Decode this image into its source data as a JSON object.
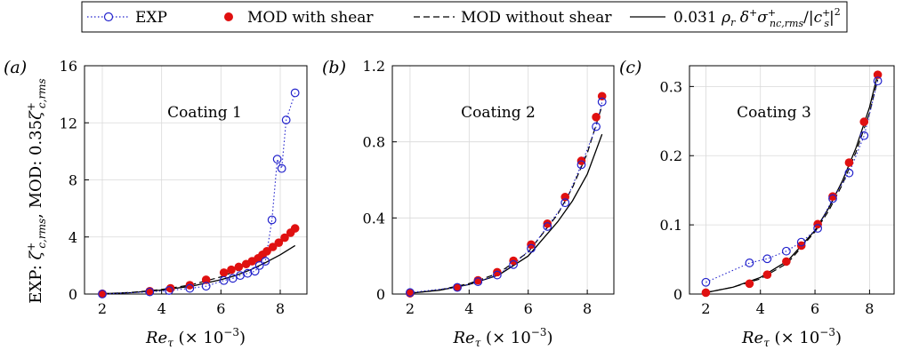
{
  "legend": {
    "items": [
      {
        "label": "EXP",
        "style": "open-circle-dotted",
        "color": "#2222cc"
      },
      {
        "label": "MOD with shear",
        "style": "filled-circle",
        "color": "#e01010"
      },
      {
        "label": "MOD without shear",
        "style": "dashed",
        "color": "#000000"
      },
      {
        "label": "0.031 ρr δ+σ+nc,rms/|c+s|2",
        "style": "solid",
        "color": "#000000"
      }
    ]
  },
  "ylabel": "EXP: ζ+c,rms, MOD: 0.35ζ+c,rms",
  "chart_data": [
    {
      "type": "line",
      "panel_label": "(a)",
      "annotation": "Coating 1",
      "xlabel": "Reτ (× 10−3)",
      "xlim": [
        1.4,
        8.9
      ],
      "ylim": [
        0,
        16
      ],
      "xticks": [
        2,
        4,
        6,
        8
      ],
      "yticks": [
        0,
        4,
        8,
        12,
        16
      ],
      "grid": true,
      "series": [
        {
          "name": "EXP",
          "x": [
            2.0,
            3.6,
            4.25,
            4.95,
            5.5,
            6.1,
            6.4,
            6.65,
            6.9,
            7.15,
            7.3,
            7.5,
            7.72,
            7.9,
            8.05,
            8.2,
            8.5
          ],
          "y": [
            0.0,
            0.15,
            0.25,
            0.4,
            0.55,
            0.95,
            1.1,
            1.3,
            1.45,
            1.6,
            2.0,
            2.3,
            5.2,
            9.45,
            8.8,
            12.2,
            14.1
          ]
        },
        {
          "name": "MOD with shear",
          "x": [
            2.0,
            3.6,
            4.3,
            4.95,
            5.5,
            6.1,
            6.35,
            6.6,
            6.85,
            7.05,
            7.25,
            7.4,
            7.55,
            7.75,
            7.95,
            8.15,
            8.35,
            8.5
          ],
          "y": [
            0.02,
            0.2,
            0.4,
            0.62,
            1.0,
            1.5,
            1.7,
            1.9,
            2.1,
            2.3,
            2.5,
            2.75,
            3.0,
            3.3,
            3.6,
            3.95,
            4.3,
            4.6
          ]
        },
        {
          "name": "MOD without shear",
          "x": [
            2.0,
            3.0,
            4.0,
            5.0,
            6.0,
            6.5,
            7.0,
            7.5,
            8.0,
            8.5
          ],
          "y": [
            0.02,
            0.12,
            0.32,
            0.65,
            1.2,
            1.6,
            2.1,
            2.75,
            3.55,
            4.55
          ]
        },
        {
          "name": "0.031 ρr δ+σ+nc,rms/|c+s|2",
          "x": [
            2.0,
            3.0,
            4.0,
            5.0,
            6.0,
            6.5,
            7.0,
            7.5,
            8.0,
            8.5
          ],
          "y": [
            0.02,
            0.1,
            0.28,
            0.55,
            1.0,
            1.3,
            1.7,
            2.2,
            2.75,
            3.4
          ]
        }
      ]
    },
    {
      "type": "line",
      "panel_label": "(b)",
      "annotation": "Coating 2",
      "xlabel": "Reτ (× 10−3)",
      "xlim": [
        1.4,
        8.9
      ],
      "ylim": [
        0,
        1.2
      ],
      "xticks": [
        2,
        4,
        6,
        8
      ],
      "yticks": [
        0,
        0.4,
        0.8,
        1.2
      ],
      "grid": true,
      "series": [
        {
          "name": "EXP",
          "x": [
            2.0,
            3.6,
            4.3,
            4.95,
            5.5,
            6.1,
            6.65,
            7.25,
            7.8,
            8.3,
            8.5
          ],
          "y": [
            0.008,
            0.035,
            0.065,
            0.1,
            0.155,
            0.24,
            0.355,
            0.48,
            0.68,
            0.88,
            1.01
          ]
        },
        {
          "name": "MOD with shear",
          "x": [
            2.0,
            3.6,
            4.3,
            4.95,
            5.5,
            6.1,
            6.65,
            7.25,
            7.8,
            8.3,
            8.5
          ],
          "y": [
            0.004,
            0.035,
            0.072,
            0.115,
            0.175,
            0.26,
            0.37,
            0.51,
            0.7,
            0.93,
            1.04
          ]
        },
        {
          "name": "MOD without shear",
          "x": [
            2.0,
            3.0,
            4.0,
            5.0,
            6.0,
            7.0,
            7.5,
            8.0,
            8.5
          ],
          "y": [
            0.004,
            0.022,
            0.055,
            0.11,
            0.22,
            0.42,
            0.56,
            0.74,
            0.99
          ]
        },
        {
          "name": "0.031 ρr δ+σ+nc,rms/|c+s|2",
          "x": [
            2.0,
            3.0,
            4.0,
            5.0,
            6.0,
            7.0,
            7.5,
            8.0,
            8.5
          ],
          "y": [
            0.004,
            0.02,
            0.05,
            0.1,
            0.2,
            0.38,
            0.49,
            0.63,
            0.84
          ]
        }
      ]
    },
    {
      "type": "line",
      "panel_label": "(c)",
      "annotation": "Coating 3",
      "xlabel": "Reτ (× 10−3)",
      "xlim": [
        1.4,
        8.9
      ],
      "ylim": [
        0,
        0.33
      ],
      "xticks": [
        2,
        4,
        6,
        8
      ],
      "yticks": [
        0,
        0.1,
        0.2,
        0.3
      ],
      "grid": true,
      "series": [
        {
          "name": "EXP",
          "x": [
            2.0,
            3.6,
            4.25,
            4.95,
            5.5,
            6.1,
            6.65,
            7.25,
            7.8,
            8.3
          ],
          "y": [
            0.017,
            0.045,
            0.051,
            0.062,
            0.075,
            0.095,
            0.138,
            0.175,
            0.229,
            0.308
          ]
        },
        {
          "name": "MOD with shear",
          "x": [
            2.0,
            3.6,
            4.25,
            4.95,
            5.5,
            6.1,
            6.65,
            7.25,
            7.8,
            8.3
          ],
          "y": [
            0.002,
            0.015,
            0.028,
            0.047,
            0.07,
            0.101,
            0.141,
            0.19,
            0.249,
            0.317
          ]
        },
        {
          "name": "MOD without shear",
          "x": [
            2.0,
            3.0,
            4.0,
            5.0,
            6.0,
            6.5,
            7.0,
            7.5,
            8.0,
            8.3
          ],
          "y": [
            0.002,
            0.01,
            0.022,
            0.045,
            0.09,
            0.12,
            0.158,
            0.205,
            0.262,
            0.31
          ]
        },
        {
          "name": "0.031 ρr δ+σ+nc,rms/|c+s|2",
          "x": [
            2.0,
            3.0,
            4.0,
            5.0,
            6.0,
            6.5,
            7.0,
            7.5,
            8.0,
            8.3
          ],
          "y": [
            0.002,
            0.01,
            0.024,
            0.048,
            0.092,
            0.124,
            0.163,
            0.211,
            0.27,
            0.318
          ]
        }
      ]
    }
  ]
}
